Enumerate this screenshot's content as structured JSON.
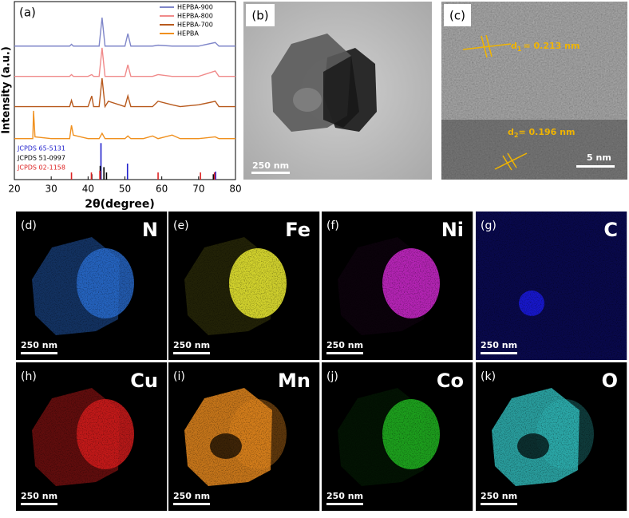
{
  "chart_data": {
    "type": "line",
    "panel_label": "(a)",
    "xlabel": "2θ(degree)",
    "ylabel": "Intensity (a.u.)",
    "xlim": [
      20,
      80
    ],
    "xticks": [
      20,
      30,
      40,
      50,
      60,
      70,
      80
    ],
    "ylim": [
      0,
      100
    ],
    "x": [
      20,
      25,
      25.2,
      25.6,
      30,
      35,
      35.5,
      36,
      40,
      41,
      41.5,
      43,
      43.8,
      44.6,
      45.5,
      50,
      50.8,
      51.6,
      55,
      57.5,
      59,
      62.8,
      65,
      70,
      74.5,
      75.5,
      80
    ],
    "series": [
      {
        "name": "HEPBA-900",
        "color": "#7f86c9",
        "values": [
          75,
          75,
          75,
          75,
          75,
          75,
          76,
          75,
          75,
          75,
          75,
          75,
          91,
          75,
          75,
          75,
          82,
          75,
          75,
          75,
          75.5,
          75,
          75,
          75,
          77,
          75,
          75
        ]
      },
      {
        "name": "HEPBA-800",
        "color": "#f08a8a",
        "values": [
          58,
          58,
          58,
          58,
          58,
          58,
          59,
          58,
          58,
          59,
          58,
          58,
          74,
          58,
          58,
          58,
          64.5,
          58,
          58,
          58,
          59,
          58,
          58,
          58,
          61,
          58,
          58
        ]
      },
      {
        "name": "HEPBA-700",
        "color": "#b85a1e",
        "values": [
          41,
          41,
          41,
          41,
          41,
          41,
          44.5,
          41,
          41,
          47,
          41,
          41,
          57,
          41,
          44,
          41,
          47,
          41,
          41,
          41,
          44,
          42,
          41,
          42,
          44,
          41,
          41
        ]
      },
      {
        "name": "HEPBA",
        "color": "#f0901e",
        "values": [
          23,
          23,
          38.6,
          24,
          23,
          23,
          30.5,
          25,
          23,
          23,
          23,
          23,
          26,
          23,
          23,
          23,
          24.5,
          23,
          23,
          24.5,
          23,
          25,
          23,
          23,
          24,
          23,
          23
        ]
      }
    ],
    "references": [
      {
        "name": "JCPDS 65-5131",
        "color": "#2222cc",
        "positions": [
          43.5,
          50.7,
          74.6
        ],
        "values": [
          20.5,
          9,
          4.5
        ]
      },
      {
        "name": "JCPDS 51-0997",
        "color": "#000000",
        "positions": [
          41.0,
          43.3,
          44.3,
          45.0,
          74.0
        ],
        "values": [
          3,
          7.7,
          7,
          4,
          3
        ]
      },
      {
        "name": "JCPDS 02-1158",
        "color": "#dd2222",
        "positions": [
          35.5,
          40.9,
          43.2,
          59.0,
          70.5,
          74.3
        ],
        "values": [
          4,
          4,
          5,
          4,
          4,
          4
        ]
      }
    ]
  },
  "tem": {
    "label": "(b)",
    "scale_bar": "250 nm"
  },
  "hrtem": {
    "label": "(c)",
    "spacings": [
      {
        "symbol": "d",
        "subscript": "1",
        "text": "= 0.213 nm"
      },
      {
        "symbol": "d",
        "subscript": "2",
        "text": "= 0.196 nm"
      }
    ],
    "scale_bar": "5 nm"
  },
  "maps": [
    {
      "label": "(d)",
      "element": "N",
      "scale_bar": "250 nm",
      "color": "#2a6fd6"
    },
    {
      "label": "(e)",
      "element": "Fe",
      "scale_bar": "250 nm",
      "color": "#e6e632"
    },
    {
      "label": "(f)",
      "element": "Ni",
      "scale_bar": "250 nm",
      "color": "#d22ad2"
    },
    {
      "label": "(g)",
      "element": "C",
      "scale_bar": "250 nm",
      "color": "#1a1ad8"
    },
    {
      "label": "(h)",
      "element": "Cu",
      "scale_bar": "250 nm",
      "color": "#d41c1c"
    },
    {
      "label": "(i)",
      "element": "Mn",
      "scale_bar": "250 nm",
      "color": "#e88a1e"
    },
    {
      "label": "(j)",
      "element": "Co",
      "scale_bar": "250 nm",
      "color": "#22b822"
    },
    {
      "label": "(k)",
      "element": "O",
      "scale_bar": "250 nm",
      "color": "#33c4c4"
    }
  ]
}
